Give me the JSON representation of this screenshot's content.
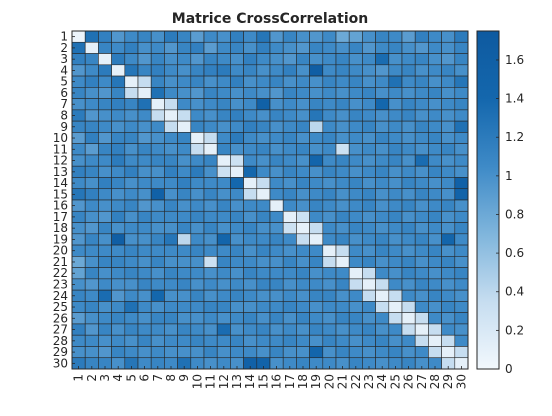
{
  "chart_data": {
    "type": "heatmap",
    "title": "Matrice CrossCorrelation",
    "x_categories": [
      "1",
      "2",
      "3",
      "4",
      "5",
      "6",
      "7",
      "8",
      "9",
      "10",
      "11",
      "12",
      "13",
      "14",
      "15",
      "16",
      "17",
      "18",
      "19",
      "20",
      "21",
      "22",
      "23",
      "24",
      "25",
      "26",
      "27",
      "28",
      "29",
      "30"
    ],
    "y_categories": [
      "1",
      "2",
      "3",
      "4",
      "5",
      "6",
      "7",
      "8",
      "9",
      "10",
      "11",
      "12",
      "13",
      "14",
      "15",
      "16",
      "17",
      "18",
      "19",
      "20",
      "21",
      "22",
      "23",
      "24",
      "25",
      "26",
      "27",
      "28",
      "29",
      "30"
    ],
    "values": [
      [
        0.05,
        1.3,
        1.15,
        0.95,
        1.05,
        1.1,
        1.0,
        1.2,
        1.1,
        0.9,
        1.05,
        1.0,
        1.15,
        1.05,
        1.25,
        0.95,
        1.1,
        1.0,
        0.95,
        1.05,
        0.8,
        0.85,
        1.0,
        1.1,
        1.05,
        0.9,
        1.15,
        1.05,
        1.0,
        1.2
      ],
      [
        1.3,
        0.1,
        1.1,
        1.05,
        1.15,
        1.0,
        1.05,
        0.95,
        1.1,
        1.15,
        0.9,
        1.05,
        1.1,
        1.0,
        1.15,
        1.05,
        1.0,
        0.95,
        1.1,
        1.05,
        1.0,
        1.1,
        0.95,
        1.05,
        1.1,
        1.0,
        0.95,
        1.05,
        1.0,
        1.1
      ],
      [
        1.15,
        1.1,
        0.1,
        1.2,
        1.05,
        0.95,
        1.1,
        1.0,
        1.05,
        0.95,
        1.1,
        1.05,
        1.0,
        1.15,
        1.05,
        1.0,
        0.95,
        1.1,
        1.0,
        1.05,
        1.1,
        1.0,
        1.05,
        1.35,
        1.0,
        1.05,
        1.1,
        1.0,
        0.95,
        1.1
      ],
      [
        0.95,
        1.05,
        1.2,
        0.1,
        1.25,
        1.1,
        1.15,
        1.05,
        1.0,
        1.1,
        1.15,
        1.2,
        1.05,
        1.1,
        1.0,
        1.05,
        1.15,
        1.0,
        1.65,
        1.05,
        1.1,
        1.05,
        1.0,
        0.95,
        1.05,
        1.1,
        1.0,
        1.05,
        1.1,
        1.0
      ],
      [
        1.05,
        1.15,
        1.05,
        1.25,
        0.1,
        0.35,
        1.1,
        1.0,
        1.05,
        1.1,
        1.0,
        1.05,
        1.15,
        1.0,
        1.05,
        1.1,
        1.0,
        1.05,
        1.0,
        1.1,
        1.05,
        1.1,
        1.0,
        1.05,
        1.3,
        1.05,
        1.1,
        1.0,
        1.05,
        1.25
      ],
      [
        1.1,
        1.0,
        0.95,
        1.1,
        0.35,
        0.1,
        1.3,
        1.05,
        1.0,
        0.95,
        1.1,
        1.05,
        1.0,
        1.05,
        1.0,
        0.95,
        1.1,
        1.05,
        1.0,
        1.05,
        1.0,
        1.05,
        1.1,
        1.0,
        1.05,
        1.0,
        1.05,
        1.1,
        1.0,
        1.05
      ],
      [
        1.0,
        1.05,
        1.1,
        1.15,
        1.1,
        1.3,
        0.1,
        0.35,
        1.05,
        1.0,
        1.05,
        1.1,
        1.0,
        1.05,
        1.55,
        1.0,
        1.05,
        1.0,
        1.1,
        1.05,
        1.1,
        1.0,
        1.05,
        1.4,
        1.0,
        1.1,
        1.05,
        1.0,
        1.05,
        1.1
      ],
      [
        1.2,
        0.95,
        1.0,
        1.05,
        1.0,
        1.05,
        0.35,
        0.1,
        0.35,
        1.05,
        1.0,
        1.1,
        1.15,
        1.05,
        1.0,
        1.1,
        1.05,
        1.0,
        1.25,
        1.05,
        1.0,
        1.1,
        1.05,
        1.0,
        1.05,
        1.1,
        1.0,
        1.05,
        1.0,
        1.05
      ],
      [
        1.1,
        1.1,
        1.05,
        1.0,
        1.05,
        1.0,
        1.05,
        0.35,
        0.1,
        1.1,
        1.05,
        1.0,
        1.05,
        1.15,
        1.1,
        1.0,
        1.05,
        1.1,
        0.4,
        1.05,
        1.0,
        1.05,
        1.1,
        1.0,
        1.05,
        1.0,
        1.1,
        1.05,
        1.0,
        1.3
      ],
      [
        0.9,
        1.15,
        0.95,
        1.1,
        1.1,
        0.95,
        1.0,
        1.05,
        1.1,
        0.1,
        0.35,
        1.05,
        1.2,
        1.05,
        1.0,
        1.05,
        1.1,
        1.0,
        1.05,
        1.1,
        1.0,
        1.05,
        1.0,
        1.1,
        1.05,
        1.0,
        1.05,
        1.1,
        1.0,
        1.05
      ],
      [
        1.05,
        0.9,
        1.1,
        1.15,
        1.0,
        1.1,
        1.05,
        1.0,
        1.05,
        0.35,
        0.1,
        1.1,
        1.0,
        1.05,
        1.1,
        1.0,
        1.05,
        1.1,
        1.0,
        1.05,
        0.3,
        1.0,
        1.05,
        1.0,
        1.1,
        1.05,
        1.0,
        1.05,
        1.1,
        1.0
      ],
      [
        1.0,
        1.05,
        1.05,
        1.2,
        1.05,
        1.05,
        1.1,
        1.1,
        1.0,
        1.05,
        1.1,
        0.1,
        0.3,
        1.05,
        1.0,
        1.1,
        1.05,
        1.0,
        1.45,
        1.05,
        1.1,
        1.05,
        1.0,
        1.05,
        1.1,
        1.0,
        1.35,
        1.05,
        1.0,
        1.05
      ],
      [
        1.15,
        1.1,
        1.0,
        1.05,
        1.15,
        1.0,
        1.0,
        1.15,
        1.05,
        1.2,
        1.0,
        0.3,
        0.1,
        1.4,
        1.05,
        1.0,
        1.1,
        1.05,
        1.0,
        1.1,
        1.05,
        1.0,
        1.05,
        1.1,
        1.0,
        1.05,
        1.0,
        1.1,
        1.05,
        1.0
      ],
      [
        1.05,
        1.0,
        1.15,
        1.1,
        1.0,
        1.05,
        1.05,
        1.05,
        1.15,
        1.05,
        1.05,
        1.05,
        1.4,
        0.1,
        0.35,
        1.05,
        1.0,
        1.1,
        1.05,
        1.0,
        1.05,
        1.1,
        1.0,
        1.05,
        1.0,
        1.1,
        1.05,
        1.0,
        1.05,
        1.55
      ],
      [
        1.25,
        1.15,
        1.05,
        1.0,
        1.05,
        1.0,
        1.55,
        1.0,
        1.1,
        1.0,
        1.1,
        1.0,
        1.05,
        0.35,
        0.1,
        1.05,
        1.1,
        1.0,
        1.05,
        1.1,
        1.0,
        1.05,
        1.1,
        1.0,
        1.05,
        1.0,
        1.1,
        1.05,
        1.0,
        1.5
      ],
      [
        0.95,
        1.05,
        1.0,
        1.05,
        1.1,
        0.95,
        1.0,
        1.1,
        1.0,
        1.05,
        1.0,
        1.1,
        1.0,
        1.05,
        1.05,
        0.1,
        1.05,
        1.0,
        1.1,
        1.05,
        1.0,
        1.05,
        1.1,
        1.0,
        1.05,
        1.1,
        1.0,
        1.05,
        1.1,
        1.0
      ],
      [
        1.1,
        1.0,
        0.95,
        1.15,
        1.0,
        1.1,
        1.05,
        1.05,
        1.05,
        1.1,
        1.05,
        1.05,
        1.1,
        1.0,
        1.1,
        1.05,
        0.1,
        0.3,
        1.05,
        1.0,
        1.1,
        1.05,
        1.0,
        1.05,
        1.1,
        1.0,
        1.05,
        1.1,
        1.0,
        1.05
      ],
      [
        1.0,
        0.95,
        1.1,
        1.0,
        1.05,
        1.05,
        1.0,
        1.0,
        1.1,
        1.0,
        1.1,
        1.0,
        1.05,
        1.1,
        1.0,
        1.0,
        0.3,
        0.1,
        0.35,
        1.05,
        1.0,
        1.1,
        1.05,
        1.0,
        1.05,
        1.1,
        1.0,
        1.05,
        1.0,
        1.1
      ],
      [
        0.95,
        1.1,
        1.0,
        1.65,
        1.0,
        1.0,
        1.1,
        1.25,
        0.4,
        1.05,
        1.0,
        1.45,
        1.0,
        1.05,
        1.05,
        1.1,
        1.05,
        0.35,
        0.1,
        1.05,
        1.1,
        1.0,
        1.05,
        1.1,
        1.0,
        1.05,
        1.1,
        1.0,
        1.45,
        1.05
      ],
      [
        1.05,
        1.05,
        1.05,
        1.05,
        1.1,
        1.05,
        1.05,
        1.05,
        1.05,
        1.1,
        1.05,
        1.05,
        1.1,
        1.0,
        1.1,
        1.05,
        1.0,
        1.05,
        1.05,
        0.1,
        0.35,
        1.05,
        1.0,
        1.1,
        1.05,
        1.0,
        1.05,
        1.1,
        1.0,
        1.05
      ],
      [
        0.8,
        1.0,
        1.1,
        1.1,
        1.05,
        1.0,
        1.1,
        1.0,
        1.0,
        1.0,
        0.3,
        1.1,
        1.05,
        1.05,
        1.0,
        1.0,
        1.1,
        1.0,
        1.1,
        0.35,
        0.1,
        1.05,
        1.1,
        1.0,
        1.05,
        1.1,
        1.0,
        1.05,
        1.1,
        1.0
      ],
      [
        0.85,
        1.1,
        1.0,
        1.05,
        1.1,
        1.05,
        1.0,
        1.1,
        1.05,
        1.05,
        1.0,
        1.05,
        1.0,
        1.1,
        1.05,
        1.05,
        1.05,
        1.1,
        1.0,
        1.05,
        1.05,
        0.1,
        0.35,
        1.05,
        1.0,
        1.1,
        1.05,
        1.0,
        1.05,
        1.1
      ],
      [
        1.0,
        0.95,
        1.05,
        1.0,
        1.0,
        1.1,
        1.05,
        1.05,
        1.1,
        1.0,
        1.05,
        1.0,
        1.05,
        1.0,
        1.1,
        1.1,
        1.0,
        1.05,
        1.05,
        1.0,
        1.1,
        0.35,
        0.1,
        0.35,
        1.05,
        1.0,
        1.1,
        1.05,
        1.0,
        1.05
      ],
      [
        1.1,
        1.05,
        1.35,
        0.95,
        1.05,
        1.0,
        1.4,
        1.0,
        1.0,
        1.1,
        1.0,
        1.05,
        1.1,
        1.05,
        1.0,
        1.0,
        1.05,
        1.0,
        1.1,
        1.1,
        1.0,
        1.05,
        0.35,
        0.1,
        0.35,
        1.05,
        1.0,
        1.1,
        1.05,
        1.0
      ],
      [
        1.05,
        1.1,
        1.0,
        1.05,
        1.3,
        1.05,
        1.0,
        1.05,
        1.05,
        1.05,
        1.1,
        1.1,
        1.0,
        1.0,
        1.05,
        1.05,
        1.1,
        1.05,
        1.0,
        1.05,
        1.05,
        1.0,
        1.05,
        0.35,
        0.1,
        0.35,
        1.05,
        1.0,
        1.1,
        1.05
      ],
      [
        0.9,
        1.0,
        1.05,
        1.1,
        1.05,
        1.0,
        1.1,
        1.1,
        1.0,
        1.0,
        1.05,
        1.0,
        1.05,
        1.1,
        1.0,
        1.1,
        1.0,
        1.1,
        1.05,
        1.0,
        1.1,
        1.1,
        1.0,
        1.05,
        0.35,
        0.1,
        0.35,
        1.05,
        1.0,
        1.1
      ],
      [
        1.15,
        0.95,
        1.1,
        1.0,
        1.1,
        1.05,
        1.05,
        1.0,
        1.1,
        1.05,
        1.0,
        1.35,
        1.0,
        1.05,
        1.1,
        1.0,
        1.05,
        1.0,
        1.1,
        1.05,
        1.0,
        1.05,
        1.1,
        1.0,
        1.05,
        0.35,
        0.1,
        0.35,
        1.05,
        1.0
      ],
      [
        1.05,
        1.05,
        1.0,
        1.05,
        1.0,
        1.1,
        1.0,
        1.05,
        1.05,
        1.1,
        1.05,
        1.05,
        1.1,
        1.0,
        1.05,
        1.05,
        1.1,
        1.05,
        1.0,
        1.1,
        1.05,
        1.0,
        1.05,
        1.1,
        1.0,
        1.05,
        0.35,
        0.1,
        0.35,
        1.05
      ],
      [
        1.0,
        1.0,
        0.95,
        1.1,
        1.05,
        1.0,
        1.05,
        1.0,
        1.0,
        1.0,
        1.1,
        1.0,
        1.05,
        1.05,
        1.0,
        1.1,
        1.0,
        1.0,
        1.45,
        1.0,
        1.1,
        1.05,
        1.0,
        1.05,
        1.1,
        1.0,
        1.05,
        0.35,
        0.1,
        0.35
      ],
      [
        1.2,
        1.1,
        1.1,
        1.0,
        1.25,
        1.05,
        1.1,
        1.05,
        1.3,
        1.05,
        1.0,
        1.05,
        1.0,
        1.55,
        1.5,
        1.0,
        1.05,
        1.1,
        1.05,
        1.05,
        1.0,
        1.1,
        1.05,
        1.0,
        1.05,
        1.1,
        1.0,
        1.05,
        0.35,
        0.1
      ]
    ],
    "colorbar": {
      "range": [
        0,
        1.75
      ],
      "ticks": [
        "0",
        "0.2",
        "0.4",
        "0.6",
        "0.8",
        "1",
        "1.2",
        "1.4",
        "1.6"
      ],
      "tick_values": [
        0,
        0.2,
        0.4,
        0.6,
        0.8,
        1,
        1.2,
        1.4,
        1.6
      ]
    },
    "colormap": [
      "#f2f8fd",
      "#c6ddf0",
      "#7fb5dc",
      "#3e8ac7",
      "#1467ad",
      "#0e5aa0"
    ],
    "grid_color": "#262626",
    "axis_color": "#262626"
  }
}
